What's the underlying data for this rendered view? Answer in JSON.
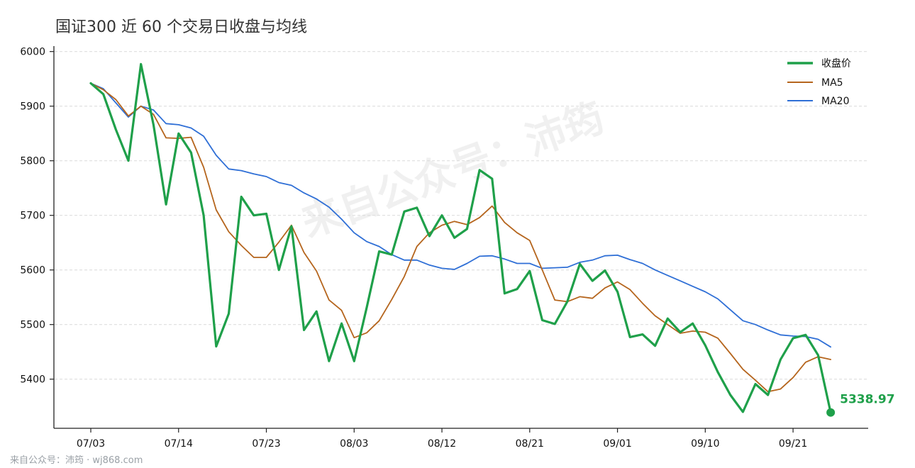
{
  "title": "国证300 近 60 个交易日收盘与均线",
  "watermark": "来自公众号：沛筠",
  "footer": "来自公众号：沛筠 · wj868.com",
  "last_label": "5338.97",
  "colors": {
    "close": "#1fa04a",
    "ma5": "#b5651d",
    "ma20": "#2f6fd6"
  },
  "chart_data": {
    "type": "line",
    "title": "国证300 近 60 个交易日收盘与均线",
    "xlabel": "",
    "ylabel": "",
    "ylim": [
      5310,
      6010
    ],
    "yticks": [
      5400,
      5500,
      5600,
      5700,
      5800,
      5900,
      6000
    ],
    "xtick_labels": [
      "07/03",
      "07/14",
      "07/23",
      "08/03",
      "08/12",
      "08/21",
      "09/01",
      "09/10",
      "09/21"
    ],
    "xtick_index": [
      0,
      7,
      14,
      21,
      28,
      35,
      42,
      49,
      56
    ],
    "grid": "horizontal dashed",
    "legend_position": "top-right",
    "series": [
      {
        "name": "收盘价",
        "values": [
          5942,
          5922,
          5857,
          5800,
          5977,
          5866,
          5720,
          5850,
          5815,
          5700,
          5460,
          5520,
          5734,
          5700,
          5703,
          5600,
          5680,
          5490,
          5524,
          5433,
          5502,
          5433,
          5531,
          5634,
          5628,
          5707,
          5714,
          5662,
          5700,
          5659,
          5675,
          5783,
          5767,
          5557,
          5565,
          5598,
          5508,
          5501,
          5542,
          5611,
          5580,
          5599,
          5560,
          5477,
          5482,
          5461,
          5511,
          5486,
          5502,
          5462,
          5413,
          5371,
          5340,
          5391,
          5371,
          5436,
          5475,
          5481,
          5444,
          5338.97
        ]
      },
      {
        "name": "MA5",
        "values": [
          5942,
          5930,
          5912,
          5882,
          5900,
          5885,
          5842,
          5841,
          5843,
          5788,
          5710,
          5670,
          5645,
          5623,
          5623,
          5651,
          5682,
          5632,
          5598,
          5545,
          5526,
          5476,
          5485,
          5507,
          5546,
          5588,
          5643,
          5668,
          5682,
          5689,
          5683,
          5696,
          5717,
          5687,
          5668,
          5654,
          5600,
          5545,
          5542,
          5551,
          5548,
          5567,
          5578,
          5564,
          5539,
          5516,
          5500,
          5484,
          5488,
          5486,
          5475,
          5447,
          5418,
          5398,
          5377,
          5382,
          5403,
          5431,
          5441,
          5436
        ]
      },
      {
        "name": "MA20",
        "values": [
          5942,
          5932,
          5906,
          5880,
          5900,
          5893,
          5868,
          5866,
          5860,
          5845,
          5810,
          5785,
          5782,
          5776,
          5771,
          5760,
          5755,
          5741,
          5730,
          5715,
          5693,
          5668,
          5652,
          5643,
          5628,
          5618,
          5618,
          5609,
          5603,
          5601,
          5612,
          5625,
          5626,
          5620,
          5612,
          5612,
          5603,
          5604,
          5605,
          5614,
          5618,
          5626,
          5627,
          5619,
          5612,
          5600,
          5590,
          5580,
          5570,
          5560,
          5547,
          5527,
          5507,
          5500,
          5490,
          5481,
          5479,
          5478,
          5473,
          5459
        ]
      }
    ]
  }
}
